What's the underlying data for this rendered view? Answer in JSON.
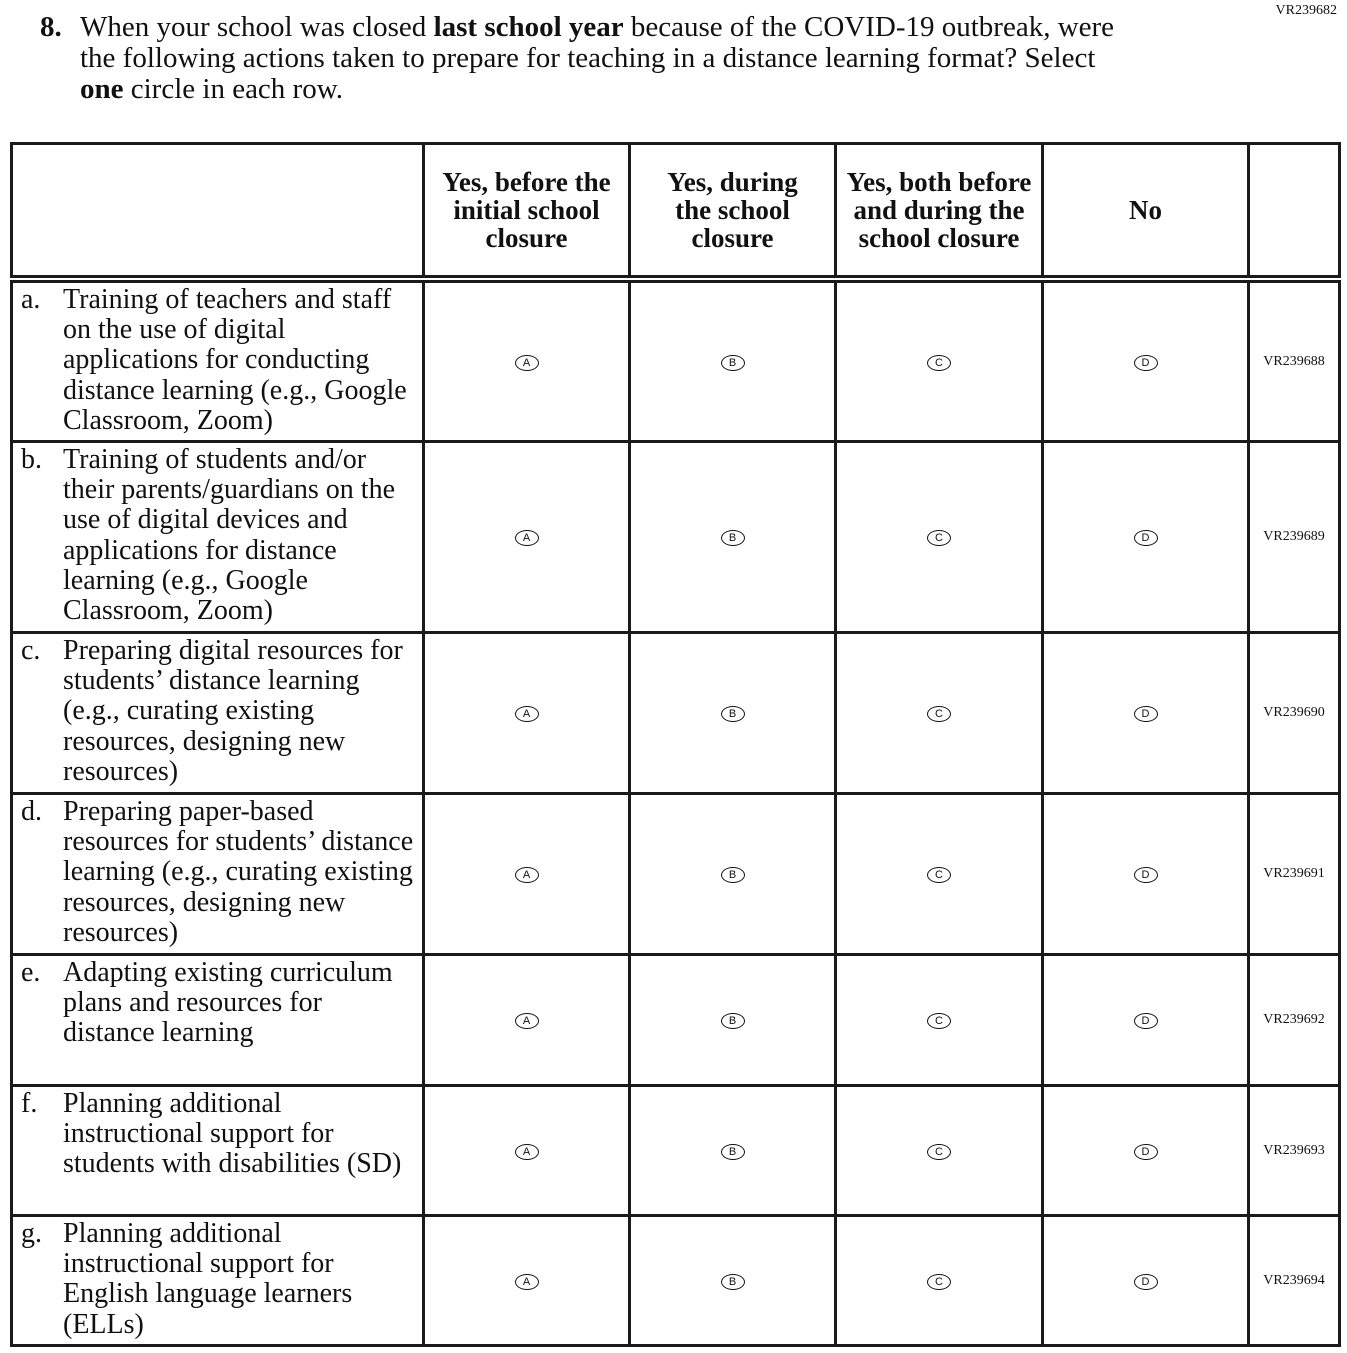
{
  "form_id": "VR239682",
  "question": {
    "number": "8.",
    "text_parts": [
      "When your school was closed ",
      "last school year",
      " because of the COVID-19 outbreak, were the following actions taken to prepare for teaching in a distance learning format? Select ",
      "one",
      " circle in each row."
    ]
  },
  "columns": [
    "Yes, before the initial school closure",
    "Yes, during the school closure",
    "Yes, both before and during the school closure",
    "No"
  ],
  "options": [
    "A",
    "B",
    "C",
    "D"
  ],
  "rows": [
    {
      "letter": "a.",
      "text": "Training of teachers and staff on the use of digital applications for conducting distance learning (e.g., Google Classroom, Zoom)",
      "id": "VR239688"
    },
    {
      "letter": "b.",
      "text": "Training of students and/or their parents/guardians on the use of digital devices and applications for distance learning (e.g., Google Classroom, Zoom)",
      "id": "VR239689"
    },
    {
      "letter": "c.",
      "text": "Preparing digital resources for students’ distance learning (e.g., curating existing resources, designing new resources)",
      "id": "VR239690"
    },
    {
      "letter": "d.",
      "text": "Preparing paper-based resources for students’ distance learning (e.g., curating existing resources, designing new resources)",
      "id": "VR239691"
    },
    {
      "letter": "e.",
      "text": "Adapting existing curriculum plans and resources for distance learning",
      "id": "VR239692"
    },
    {
      "letter": "f.",
      "text": "Planning additional instructional support for students with disabilities (SD)",
      "id": "VR239693"
    },
    {
      "letter": "g.",
      "text": "Planning additional instructional support for English language learners (ELLs)",
      "id": "VR239694"
    }
  ]
}
